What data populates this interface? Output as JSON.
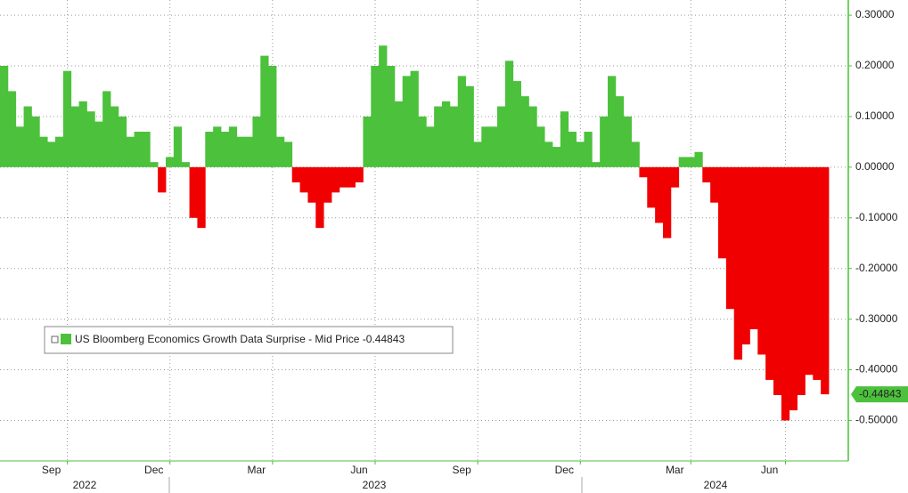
{
  "chart_data": {
    "type": "bar",
    "series": [
      {
        "name": "US Bloomberg Economics Growth Data Surprise - Mid Price",
        "colors": {
          "positive": "#4cc13c",
          "negative": "#f00000"
        },
        "values": [
          0.2,
          0.15,
          0.08,
          0.12,
          0.1,
          0.06,
          0.05,
          0.06,
          0.19,
          0.12,
          0.13,
          0.11,
          0.09,
          0.15,
          0.12,
          0.1,
          0.06,
          0.07,
          0.07,
          0.01,
          -0.05,
          0.02,
          0.08,
          0.01,
          -0.1,
          -0.12,
          0.07,
          0.08,
          0.07,
          0.08,
          0.06,
          0.06,
          0.1,
          0.22,
          0.2,
          0.06,
          0.05,
          -0.03,
          -0.05,
          -0.07,
          -0.12,
          -0.07,
          -0.05,
          -0.04,
          -0.04,
          -0.03,
          0.1,
          0.2,
          0.24,
          0.2,
          0.13,
          0.18,
          0.19,
          0.1,
          0.08,
          0.12,
          0.13,
          0.12,
          0.18,
          0.16,
          0.05,
          0.08,
          0.08,
          0.12,
          0.21,
          0.17,
          0.14,
          0.12,
          0.08,
          0.05,
          0.04,
          0.11,
          0.07,
          0.05,
          0.07,
          0.01,
          0.1,
          0.18,
          0.14,
          0.1,
          0.05,
          -0.02,
          -0.08,
          -0.11,
          -0.14,
          -0.04,
          0.02,
          0.02,
          0.03,
          -0.03,
          -0.07,
          -0.18,
          -0.28,
          -0.38,
          -0.35,
          -0.32,
          -0.37,
          -0.42,
          -0.45,
          -0.5,
          -0.48,
          -0.45,
          -0.41,
          -0.42,
          -0.44843
        ]
      }
    ],
    "categories": [
      null,
      null,
      null,
      null,
      null,
      null,
      "Sep",
      null,
      null,
      null,
      null,
      null,
      null,
      null,
      null,
      null,
      null,
      null,
      null,
      "Dec",
      null,
      null,
      null,
      null,
      null,
      null,
      null,
      null,
      null,
      null,
      null,
      null,
      "Mar",
      null,
      null,
      null,
      null,
      null,
      null,
      null,
      null,
      null,
      null,
      null,
      null,
      "Jun",
      null,
      null,
      null,
      null,
      null,
      null,
      null,
      null,
      null,
      null,
      null,
      null,
      "Sep",
      null,
      null,
      null,
      null,
      null,
      null,
      null,
      null,
      null,
      null,
      null,
      null,
      "Dec",
      null,
      null,
      null,
      null,
      null,
      null,
      null,
      null,
      null,
      null,
      null,
      null,
      null,
      "Mar",
      null,
      null,
      null,
      null,
      null,
      null,
      null,
      null,
      null,
      null,
      null,
      "Jun",
      null,
      null,
      null,
      null,
      null,
      null,
      null
    ],
    "x_groups": [
      "2022",
      "2023",
      "2024"
    ],
    "last_value": {
      "value": -0.44843,
      "label": "-0.44843"
    },
    "ylim": [
      -0.58,
      0.33
    ],
    "yticks": [
      {
        "value": -0.5,
        "label": "-0.50000"
      },
      {
        "value": -0.4,
        "label": "-0.40000"
      },
      {
        "value": -0.3,
        "label": "-0.30000"
      },
      {
        "value": -0.2,
        "label": "-0.20000"
      },
      {
        "value": -0.1,
        "label": "-0.10000"
      },
      {
        "value": 0,
        "label": "0.00000"
      },
      {
        "value": 0.1,
        "label": "0.10000"
      },
      {
        "value": 0.2,
        "label": "0.20000"
      },
      {
        "value": 0.3,
        "label": "0.30000"
      }
    ],
    "y_axis_side": "right",
    "grid": true
  }
}
